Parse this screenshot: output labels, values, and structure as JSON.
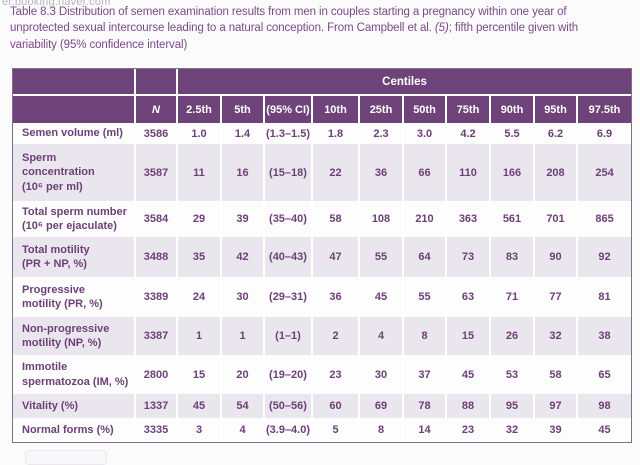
{
  "overlay": {
    "status_url": "er.booking.naver.com"
  },
  "caption": {
    "part1": "Table 8.3 Distribution of semen examination results from men in couples starting a pregnancy within one year of unprotected sexual intercourse leading to a natural conception. From Campbell et al. ",
    "citation": "(5)",
    "part2": "; fifth percentile given with variability (95% confidence interval)"
  },
  "colors": {
    "header_bg": "#6e4379",
    "zebra_bg": "#eae6ed",
    "body_text": "#6d4078",
    "caption_text": "#7b4889"
  },
  "table": {
    "centiles_label": "Centiles",
    "columns": [
      "",
      "N",
      "2.5th",
      "5th",
      "(95% CI)",
      "10th",
      "25th",
      "50th",
      "75th",
      "90th",
      "95th",
      "97.5th"
    ],
    "rows": [
      {
        "label": "Semen volume (ml)",
        "n": "3586",
        "values": [
          "1.0",
          "1.4",
          "(1.3–1.5)",
          "1.8",
          "2.3",
          "3.0",
          "4.2",
          "5.5",
          "6.2",
          "6.9"
        ]
      },
      {
        "label": "Sperm\nconcentration\n(10⁶ per ml)",
        "n": "3587",
        "values": [
          "11",
          "16",
          "(15–18)",
          "22",
          "36",
          "66",
          "110",
          "166",
          "208",
          "254"
        ]
      },
      {
        "label": "Total sperm number\n(10⁶ per ejaculate)",
        "n": "3584",
        "values": [
          "29",
          "39",
          "(35–40)",
          "58",
          "108",
          "210",
          "363",
          "561",
          "701",
          "865"
        ]
      },
      {
        "label": "Total motility\n(PR + NP, %)",
        "n": "3488",
        "values": [
          "35",
          "42",
          "(40–43)",
          "47",
          "55",
          "64",
          "73",
          "83",
          "90",
          "92"
        ]
      },
      {
        "label": "Progressive\nmotility (PR, %)",
        "n": "3389",
        "values": [
          "24",
          "30",
          "(29–31)",
          "36",
          "45",
          "55",
          "63",
          "71",
          "77",
          "81"
        ]
      },
      {
        "label": "Non-progressive\nmotility (NP, %)",
        "n": "3387",
        "values": [
          "1",
          "1",
          "(1–1)",
          "2",
          "4",
          "8",
          "15",
          "26",
          "32",
          "38"
        ]
      },
      {
        "label": "Immotile\nspermatozoa (IM, %)",
        "n": "2800",
        "values": [
          "15",
          "20",
          "(19–20)",
          "23",
          "30",
          "37",
          "45",
          "53",
          "58",
          "65"
        ]
      },
      {
        "label": "Vitality (%)",
        "n": "1337",
        "values": [
          "45",
          "54",
          "(50–56)",
          "60",
          "69",
          "78",
          "88",
          "95",
          "97",
          "98"
        ]
      },
      {
        "label": "Normal forms (%)",
        "n": "3335",
        "values": [
          "3",
          "4",
          "(3.9–4.0)",
          "5",
          "8",
          "14",
          "23",
          "32",
          "39",
          "45"
        ]
      }
    ]
  }
}
